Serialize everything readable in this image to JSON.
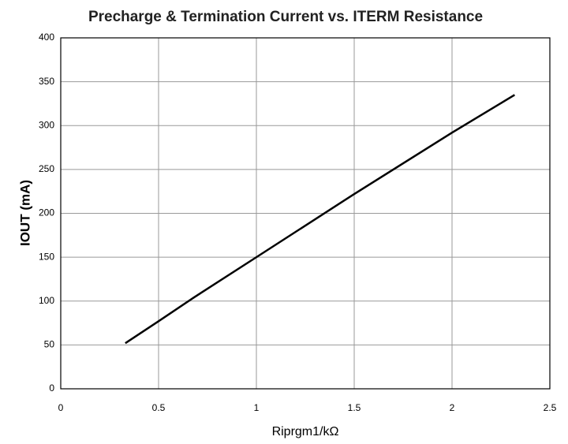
{
  "chart_data": {
    "type": "line",
    "title": "Precharge & Termination Current vs. ITERM Resistance",
    "x_label": "Riprgm1/kΩ",
    "y_label": "IOUT (mA)",
    "x": [
      0.33,
      0.5,
      0.68,
      1,
      1.5,
      2,
      2.32
    ],
    "series": [
      {
        "name": "IOUT",
        "color": "#000000",
        "values": [
          52,
          77,
          104,
          150,
          222,
          292,
          335
        ]
      }
    ],
    "xlim": [
      0,
      2.5
    ],
    "xticks": [
      0,
      0.5,
      1,
      1.5,
      2,
      2.5
    ],
    "ylim": [
      0,
      400
    ],
    "yticks": [
      0,
      50,
      100,
      150,
      200,
      250,
      300,
      350,
      400
    ],
    "grid": true
  }
}
